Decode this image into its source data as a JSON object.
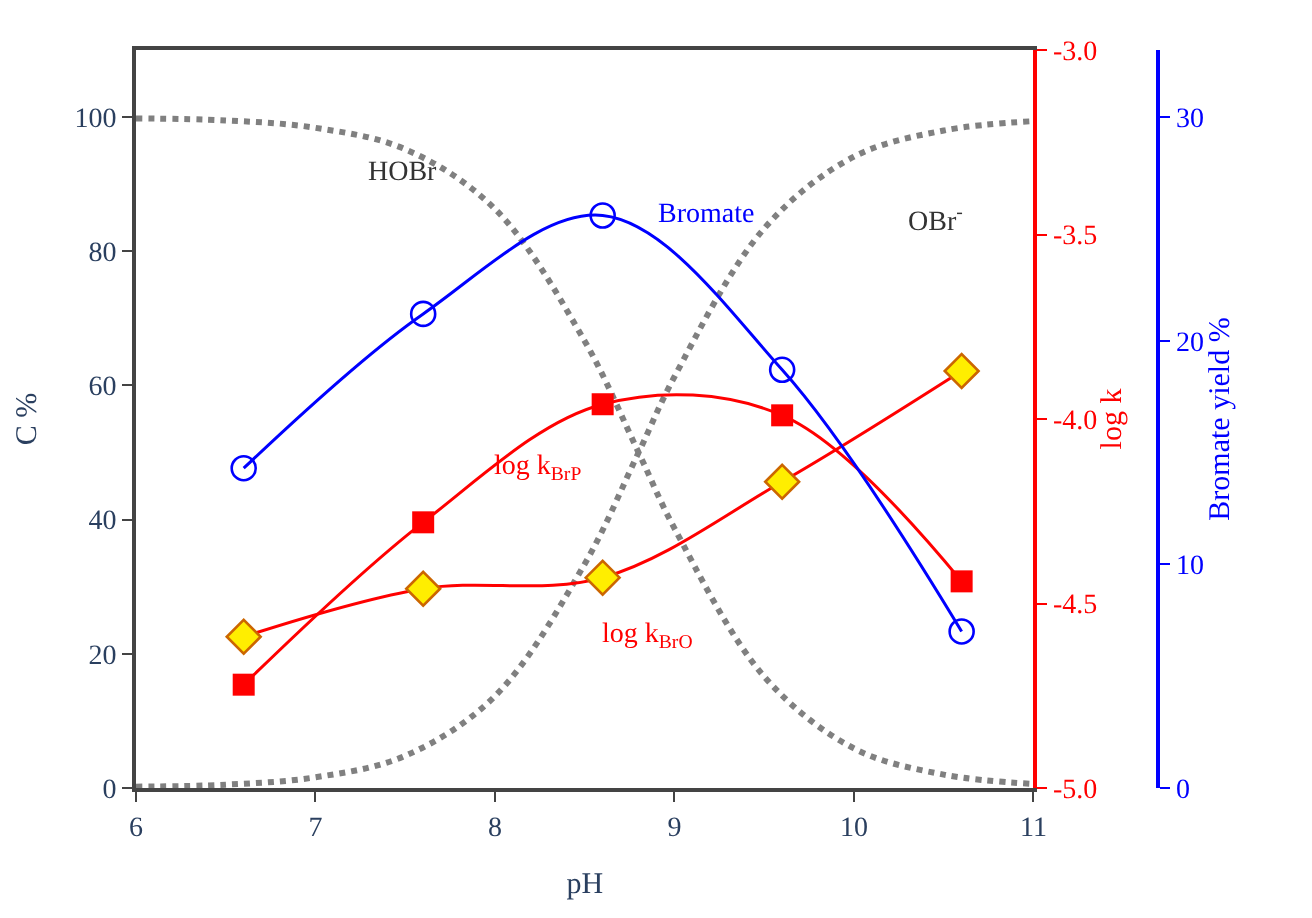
{
  "chart_data": {
    "type": "line",
    "xlabel": "pH",
    "ylabel": "C %",
    "y2label": "log k",
    "y3label": "Bromate yield %",
    "x": [
      6.6,
      7.6,
      8.6,
      9.6,
      10.6
    ],
    "xlim": [
      6,
      11
    ],
    "xticks": [
      6,
      7,
      8,
      9,
      10,
      11
    ],
    "ylim": [
      0,
      110
    ],
    "yticks": [
      0,
      20,
      40,
      60,
      80,
      100
    ],
    "y2lim": [
      -5.0,
      -3.0
    ],
    "y2ticks": [
      {
        "value": -5.0,
        "label": "-5.0"
      },
      {
        "value": -4.5,
        "label": "-4.5"
      },
      {
        "value": -4.0,
        "label": "-4.0"
      },
      {
        "value": -3.5,
        "label": "-3.5"
      },
      {
        "value": -3.0,
        "label": "-3.0"
      }
    ],
    "y3lim": [
      0,
      33
    ],
    "y3ticks": [
      0,
      10,
      20,
      30
    ],
    "legend": false,
    "series": [
      {
        "name": "HOBr",
        "color": "#808080",
        "line_style": "dotted",
        "marker": "none",
        "axis": "y",
        "x": [
          6,
          6.5,
          7,
          7.5,
          8,
          8.5,
          8.8,
          9,
          9.5,
          10,
          10.5,
          11
        ],
        "values": [
          99.8,
          99.5,
          98.4,
          95.2,
          86.3,
          66.6,
          50,
          38.7,
          16.6,
          5.9,
          2.0,
          0.6
        ]
      },
      {
        "name": "OBr$^{-}$",
        "color": "#808080",
        "line_style": "dotted",
        "marker": "none",
        "axis": "y",
        "x": [
          6,
          6.5,
          7,
          7.5,
          8,
          8.5,
          8.8,
          9,
          9.5,
          10,
          10.5,
          11
        ],
        "values": [
          0.2,
          0.5,
          1.6,
          4.8,
          13.7,
          33.4,
          50,
          61.3,
          83.4,
          94.1,
          98.0,
          99.4
        ]
      },
      {
        "name": "Bromate",
        "color": "#0000ff",
        "line_style": "solid",
        "marker": "circle",
        "axis": "y3",
        "values": [
          14.3,
          21.2,
          25.6,
          18.7,
          7.0
        ]
      },
      {
        "name": "log k$_{BrP}$",
        "color": "#ff0000",
        "line_style": "solid",
        "marker": "square",
        "axis": "y2",
        "values": [
          -4.72,
          -4.28,
          -3.96,
          -3.99,
          -4.44
        ]
      },
      {
        "name": "log k$_{BrO}$",
        "color": "#ff0000",
        "line_style": "solid",
        "marker": "diamond",
        "axis": "y2",
        "values": [
          -4.59,
          -4.46,
          -4.43,
          -4.17,
          -3.87
        ]
      }
    ]
  }
}
